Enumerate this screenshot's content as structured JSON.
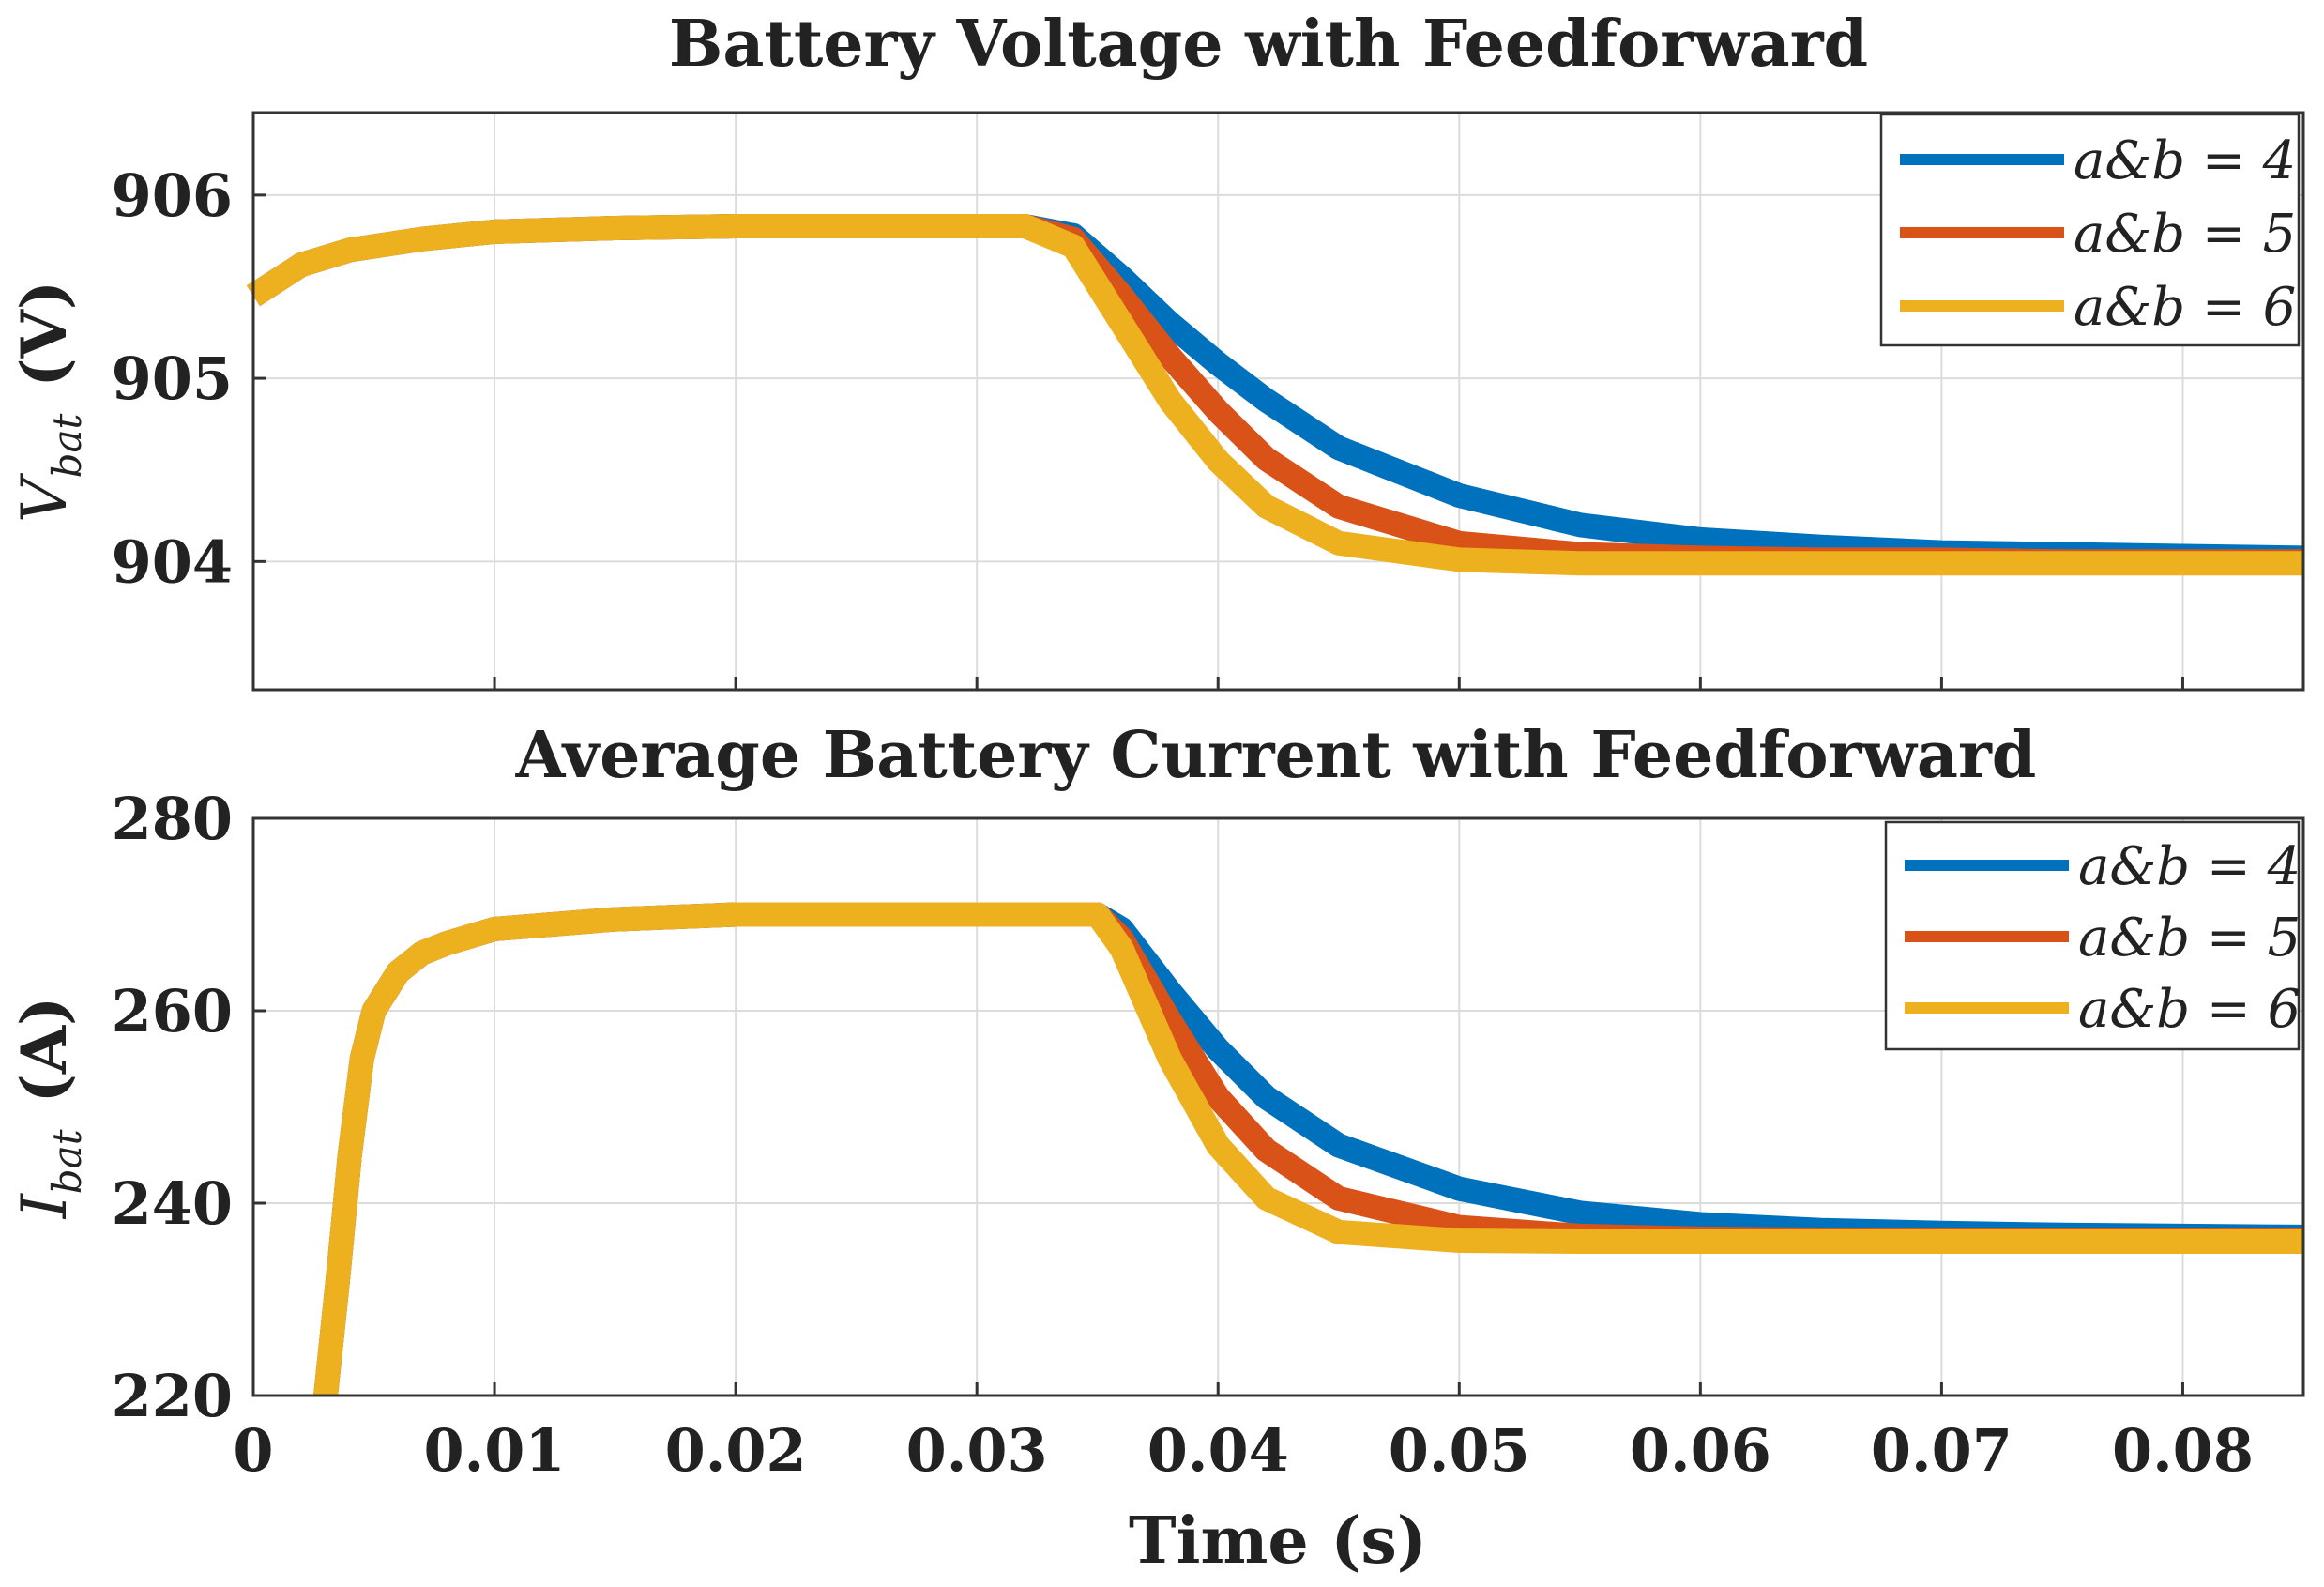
{
  "chart_data": [
    {
      "type": "line",
      "title": "Battery Voltage with Feedforward",
      "ylabel_main": "V",
      "ylabel_sub": "bat",
      "ylabel_unit": "(V)",
      "xlabel": "",
      "xlim": [
        0,
        0.085
      ],
      "ylim": [
        903.3,
        906.45
      ],
      "xticks": [
        0,
        0.01,
        0.02,
        0.03,
        0.04,
        0.05,
        0.06,
        0.07,
        0.08
      ],
      "xtick_labels": [],
      "yticks": [
        904,
        905,
        906
      ],
      "ytick_labels": [
        "904",
        "905",
        "906"
      ],
      "grid": true,
      "legend": "top-right",
      "series": [
        {
          "name": "a&b = 4",
          "label": "a&b = 4",
          "color": "#0072BD",
          "x": [
            0,
            0.002,
            0.004,
            0.007,
            0.01,
            0.015,
            0.02,
            0.025,
            0.03,
            0.032,
            0.034,
            0.036,
            0.038,
            0.04,
            0.042,
            0.045,
            0.05,
            0.055,
            0.06,
            0.065,
            0.07,
            0.075,
            0.08,
            0.085
          ],
          "y": [
            905.45,
            905.62,
            905.7,
            905.76,
            905.8,
            905.82,
            905.83,
            905.83,
            905.83,
            905.83,
            905.78,
            905.55,
            905.3,
            905.08,
            904.88,
            904.62,
            904.36,
            904.2,
            904.12,
            904.08,
            904.05,
            904.04,
            904.03,
            904.02
          ]
        },
        {
          "name": "a&b = 5",
          "label": "a&b = 5",
          "color": "#D95319",
          "x": [
            0,
            0.002,
            0.004,
            0.007,
            0.01,
            0.015,
            0.02,
            0.025,
            0.03,
            0.032,
            0.034,
            0.036,
            0.038,
            0.04,
            0.042,
            0.045,
            0.05,
            0.055,
            0.06,
            0.065,
            0.07,
            0.075,
            0.08,
            0.085
          ],
          "y": [
            905.45,
            905.62,
            905.7,
            905.76,
            905.8,
            905.82,
            905.83,
            905.83,
            905.83,
            905.83,
            905.76,
            905.45,
            905.12,
            904.82,
            904.56,
            904.3,
            904.1,
            904.04,
            904.02,
            904.01,
            904.01,
            904.0,
            904.0,
            904.0
          ]
        },
        {
          "name": "a&b = 6",
          "label": "a&b = 6",
          "color": "#EDB120",
          "x": [
            0,
            0.002,
            0.004,
            0.007,
            0.01,
            0.015,
            0.02,
            0.025,
            0.03,
            0.032,
            0.034,
            0.036,
            0.038,
            0.04,
            0.042,
            0.045,
            0.05,
            0.055,
            0.06,
            0.065,
            0.07,
            0.075,
            0.08,
            0.085
          ],
          "y": [
            905.45,
            905.62,
            905.7,
            905.76,
            905.8,
            905.82,
            905.83,
            905.83,
            905.83,
            905.83,
            905.72,
            905.3,
            904.88,
            904.55,
            904.3,
            904.1,
            904.01,
            903.99,
            903.99,
            903.99,
            903.99,
            903.99,
            903.99,
            903.99
          ]
        }
      ]
    },
    {
      "type": "line",
      "title": "Average Battery Current with Feedforward",
      "ylabel_main": "I",
      "ylabel_sub": "bat",
      "ylabel_unit": "(A)",
      "xlabel": "Time (s)",
      "xlim": [
        0,
        0.085
      ],
      "ylim": [
        220,
        280
      ],
      "xticks": [
        0,
        0.01,
        0.02,
        0.03,
        0.04,
        0.05,
        0.06,
        0.07,
        0.08
      ],
      "xtick_labels": [
        "0",
        "0.01",
        "0.02",
        "0.03",
        "0.04",
        "0.05",
        "0.06",
        "0.07",
        "0.08"
      ],
      "yticks": [
        220,
        240,
        260,
        280
      ],
      "ytick_labels": [
        "220",
        "240",
        "260",
        "280"
      ],
      "grid": true,
      "legend": "top-right",
      "series": [
        {
          "name": "a&b = 4",
          "label": "a&b = 4",
          "color": "#0072BD",
          "x": [
            0.003,
            0.0035,
            0.004,
            0.0045,
            0.005,
            0.006,
            0.007,
            0.008,
            0.01,
            0.015,
            0.02,
            0.025,
            0.03,
            0.035,
            0.036,
            0.038,
            0.04,
            0.042,
            0.045,
            0.05,
            0.055,
            0.06,
            0.065,
            0.07,
            0.075,
            0.08,
            0.085
          ],
          "y": [
            220,
            232,
            245,
            255,
            260,
            264,
            266,
            267,
            268.5,
            269.5,
            270,
            270,
            270,
            270,
            268.5,
            262,
            256,
            251,
            246,
            241.5,
            239,
            237.8,
            237.2,
            236.9,
            236.7,
            236.6,
            236.5
          ]
        },
        {
          "name": "a&b = 5",
          "label": "a&b = 5",
          "color": "#D95319",
          "x": [
            0.003,
            0.0035,
            0.004,
            0.0045,
            0.005,
            0.006,
            0.007,
            0.008,
            0.01,
            0.015,
            0.02,
            0.025,
            0.03,
            0.035,
            0.036,
            0.038,
            0.04,
            0.042,
            0.045,
            0.05,
            0.055,
            0.06,
            0.065,
            0.07,
            0.075,
            0.08,
            0.085
          ],
          "y": [
            220,
            232,
            245,
            255,
            260,
            264,
            266,
            267,
            268.5,
            269.5,
            270,
            270,
            270,
            270,
            267.5,
            259,
            251,
            245.5,
            240.5,
            237.5,
            236.6,
            236.3,
            236.2,
            236.1,
            236.1,
            236.1,
            236.1
          ]
        },
        {
          "name": "a&b = 6",
          "label": "a&b = 6",
          "color": "#EDB120",
          "x": [
            0.003,
            0.0035,
            0.004,
            0.0045,
            0.005,
            0.006,
            0.007,
            0.008,
            0.01,
            0.015,
            0.02,
            0.025,
            0.03,
            0.035,
            0.036,
            0.038,
            0.04,
            0.042,
            0.045,
            0.05,
            0.055,
            0.06,
            0.065,
            0.07,
            0.075,
            0.08,
            0.085
          ],
          "y": [
            220,
            232,
            245,
            255,
            260,
            264,
            266,
            267,
            268.5,
            269.5,
            270,
            270,
            270,
            270,
            266.5,
            255,
            246,
            240.5,
            237,
            236.1,
            236,
            236,
            236,
            236,
            236,
            236,
            236
          ]
        }
      ]
    }
  ],
  "colors": {
    "axis": "#333333",
    "grid": "#dcdcdc",
    "text": "#222222"
  }
}
